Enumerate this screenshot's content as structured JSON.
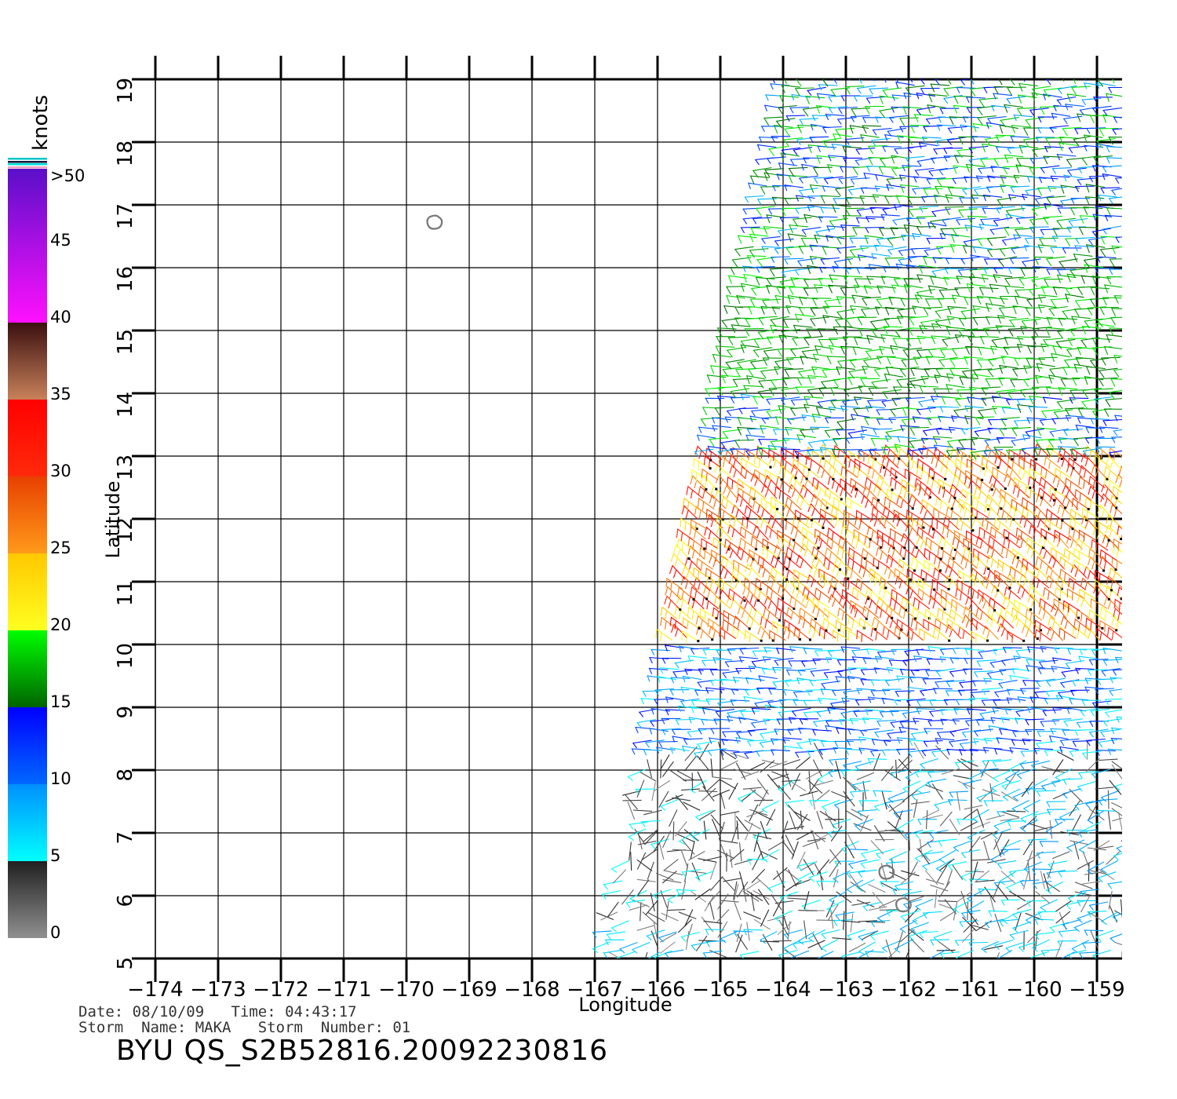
{
  "colorbar": {
    "unit_label": "knots",
    "labels": [
      ">50",
      "45",
      "40",
      "35",
      "30",
      "25",
      "20",
      "15",
      "10",
      "5",
      "0"
    ],
    "bands": [
      {
        "from": 50,
        "to": 40,
        "top": "#5a0fc8",
        "bottom": "#ff10ff"
      },
      {
        "from": 40,
        "to": 35,
        "top": "#3a0f0f",
        "bottom": "#c8825a"
      },
      {
        "from": 35,
        "to": 30,
        "top": "#ff0000",
        "bottom": "#ff2a0a"
      },
      {
        "from": 30,
        "to": 25,
        "top": "#e84000",
        "bottom": "#ff9a1a"
      },
      {
        "from": 25,
        "to": 20,
        "top": "#ffc800",
        "bottom": "#ffff20"
      },
      {
        "from": 20,
        "to": 15,
        "top": "#00ff00",
        "bottom": "#006400"
      },
      {
        "from": 15,
        "to": 10,
        "top": "#0000ff",
        "bottom": "#0068ff"
      },
      {
        "from": 10,
        "to": 5,
        "top": "#0090ff",
        "bottom": "#00ffff"
      },
      {
        "from": 5,
        "to": 0,
        "top": "#202020",
        "bottom": "#909090"
      }
    ]
  },
  "map": {
    "x_axis_label": "Longitude",
    "y_axis_label": "Latitude",
    "lon_range": [
      -174,
      -158.6
    ],
    "lat_range": [
      5,
      19
    ],
    "lon_ticks": [
      -174,
      -173,
      -172,
      -171,
      -170,
      -169,
      -168,
      -167,
      -166,
      -165,
      -164,
      -163,
      -162,
      -161,
      -160,
      -159
    ],
    "lon_tick_labels": [
      "−174",
      "−173",
      "−172",
      "−171",
      "−170",
      "−169",
      "−168",
      "−167",
      "−166",
      "−165",
      "−164",
      "−163",
      "−162",
      "−161",
      "−160",
      "−159"
    ],
    "lat_ticks": [
      5,
      6,
      7,
      8,
      9,
      10,
      11,
      12,
      13,
      14,
      15,
      16,
      17,
      18,
      19
    ],
    "lat_tick_labels": [
      "5",
      "6",
      "7",
      "8",
      "9",
      "10",
      "11",
      "12",
      "13",
      "14",
      "15",
      "16",
      "17",
      "18",
      "19"
    ],
    "swath": {
      "north_lon": [
        -164.0,
        -158.6
      ],
      "south_lon": [
        -166.9,
        -158.6
      ],
      "north_lat": 19,
      "south_lat": 5
    },
    "islands": [
      {
        "name": "",
        "lon": -169.55,
        "lat": 16.72
      },
      {
        "name": "",
        "lon": -162.35,
        "lat": 6.37
      },
      {
        "name": "",
        "lon": -162.08,
        "lat": 5.85
      }
    ],
    "wind_regions": [
      {
        "lat": [
          16.0,
          19.1
        ],
        "speed_knots": [
          8,
          20
        ],
        "direction": "from east-northeast"
      },
      {
        "lat": [
          14.0,
          16.0
        ],
        "speed_knots": [
          15,
          20
        ],
        "direction": "from east"
      },
      {
        "lat": [
          10.0,
          13.0
        ],
        "speed_knots": [
          20,
          35
        ],
        "direction": "from northeast"
      },
      {
        "lat": [
          8.3,
          10.0
        ],
        "speed_knots": [
          5,
          15
        ],
        "direction": "from east"
      },
      {
        "lat": [
          5.0,
          8.3
        ],
        "speed_knots": [
          0,
          10
        ],
        "direction": "variable"
      }
    ]
  },
  "info": {
    "date_line": "Date: 08/10/09   Time: 04:43:17",
    "storm_line": "Storm  Name: MAKA   Storm  Number: 01",
    "product_id": "BYU  QS_S2B52816.20092230816"
  }
}
